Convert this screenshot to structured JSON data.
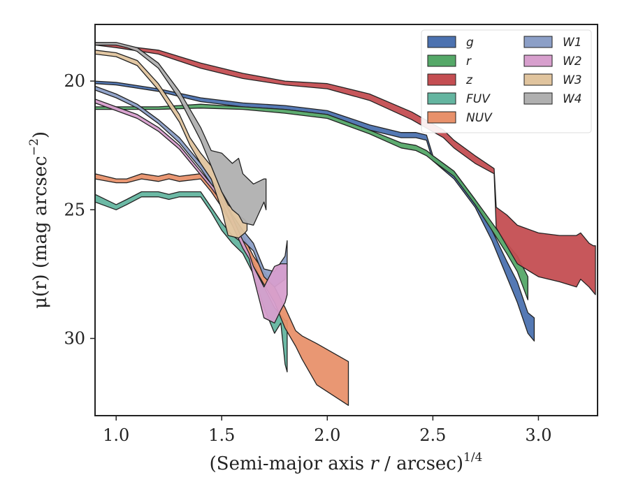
{
  "chart_data": {
    "type": "area",
    "xlabel": "(Semi-major axis r / arcsec)",
    "xlabel_var": "r",
    "xlabel_exp": "1/4",
    "ylabel": "μ(r) (mag arcsec",
    "ylabel_exp": "−2",
    "ylabel_close": ")",
    "xlim": [
      0.9,
      3.28
    ],
    "ylim": [
      33.0,
      17.8
    ],
    "y_inverted": true,
    "xticks": [
      1.0,
      1.5,
      2.0,
      2.5,
      3.0
    ],
    "xtick_labels": [
      "1.0",
      "1.5",
      "2.0",
      "2.5",
      "3.0"
    ],
    "yticks": [
      20,
      25,
      30
    ],
    "ytick_labels": [
      "20",
      "25",
      "30"
    ],
    "grid": false,
    "legend": {
      "placement": "top-right",
      "columns": 2
    },
    "series": [
      {
        "name": "g",
        "color": "#4C72B0",
        "x": [
          0.9,
          1.0,
          1.2,
          1.4,
          1.6,
          1.8,
          2.0,
          2.2,
          2.35,
          2.42,
          2.47,
          2.5,
          2.6,
          2.7,
          2.78,
          2.85,
          2.9,
          2.95,
          2.98
        ],
        "lo": [
          20.0,
          20.05,
          20.3,
          20.65,
          20.85,
          20.95,
          21.15,
          21.7,
          22.0,
          22.0,
          22.1,
          22.9,
          23.5,
          24.6,
          25.8,
          27.0,
          27.8,
          29.0,
          29.2
        ],
        "hi": [
          20.1,
          20.15,
          20.4,
          20.8,
          21.0,
          21.1,
          21.3,
          21.9,
          22.2,
          22.2,
          22.3,
          23.1,
          23.8,
          24.9,
          26.2,
          27.6,
          28.6,
          29.8,
          30.1
        ]
      },
      {
        "name": "r",
        "color": "#55A868",
        "x": [
          0.9,
          1.0,
          1.2,
          1.4,
          1.6,
          1.8,
          2.0,
          2.2,
          2.35,
          2.42,
          2.47,
          2.5,
          2.6,
          2.7,
          2.78,
          2.85,
          2.9,
          2.95
        ],
        "lo": [
          21.0,
          21.0,
          21.0,
          20.9,
          21.0,
          21.1,
          21.3,
          21.9,
          22.4,
          22.5,
          22.7,
          22.9,
          23.5,
          24.6,
          25.5,
          26.3,
          26.8,
          27.6
        ],
        "hi": [
          21.1,
          21.1,
          21.1,
          21.05,
          21.1,
          21.25,
          21.45,
          22.05,
          22.6,
          22.7,
          22.9,
          23.1,
          23.7,
          24.8,
          25.8,
          26.7,
          27.4,
          28.5
        ]
      },
      {
        "name": "z",
        "color": "#C44E52",
        "x": [
          0.9,
          1.0,
          1.2,
          1.4,
          1.6,
          1.8,
          2.0,
          2.2,
          2.4,
          2.55,
          2.6,
          2.7,
          2.79,
          2.8,
          2.85,
          2.9,
          3.0,
          3.1,
          3.18,
          3.2,
          3.24,
          3.26,
          3.27
        ],
        "lo": [
          18.5,
          18.6,
          18.8,
          19.3,
          19.7,
          20.0,
          20.1,
          20.5,
          21.2,
          21.9,
          22.3,
          22.9,
          23.4,
          24.9,
          25.2,
          25.6,
          25.9,
          26.0,
          26.0,
          25.9,
          26.3,
          26.4,
          26.4
        ],
        "hi": [
          18.6,
          18.7,
          18.95,
          19.5,
          19.9,
          20.15,
          20.3,
          20.75,
          21.5,
          22.2,
          22.6,
          23.2,
          23.6,
          25.7,
          26.4,
          27.1,
          27.6,
          27.8,
          28.0,
          27.7,
          28.0,
          28.2,
          28.3
        ]
      },
      {
        "name": "FUV",
        "color": "#64B5A0",
        "x": [
          0.9,
          1.0,
          1.05,
          1.12,
          1.2,
          1.25,
          1.3,
          1.4,
          1.45,
          1.5,
          1.55,
          1.6,
          1.65,
          1.7,
          1.75,
          1.78,
          1.8,
          1.81
        ],
        "lo": [
          24.4,
          24.8,
          24.6,
          24.3,
          24.3,
          24.4,
          24.3,
          24.3,
          24.9,
          25.5,
          26.0,
          26.3,
          27.0,
          28.0,
          28.8,
          29.1,
          29.3,
          29.3
        ],
        "hi": [
          24.7,
          25.0,
          24.8,
          24.5,
          24.5,
          24.6,
          24.5,
          24.5,
          25.1,
          25.8,
          26.3,
          26.7,
          27.5,
          28.8,
          29.8,
          29.4,
          31.0,
          31.3
        ]
      },
      {
        "name": "NUV",
        "color": "#E8916B",
        "x": [
          0.9,
          1.0,
          1.05,
          1.12,
          1.2,
          1.25,
          1.3,
          1.4,
          1.45,
          1.5,
          1.55,
          1.6,
          1.65,
          1.7,
          1.75,
          1.8,
          1.85,
          1.88,
          1.95,
          2.1
        ],
        "lo": [
          23.6,
          23.8,
          23.8,
          23.6,
          23.7,
          23.6,
          23.7,
          23.6,
          24.1,
          24.6,
          25.3,
          26.0,
          26.8,
          27.4,
          28.0,
          28.8,
          29.7,
          29.9,
          30.2,
          30.9
        ],
        "hi": [
          23.8,
          23.95,
          23.95,
          23.8,
          23.9,
          23.8,
          23.9,
          23.8,
          24.3,
          24.9,
          25.6,
          26.4,
          27.2,
          27.9,
          28.6,
          29.6,
          30.3,
          30.8,
          31.8,
          32.6
        ]
      },
      {
        "name": "W1",
        "color": "#8C9FC7",
        "x": [
          0.9,
          1.0,
          1.1,
          1.2,
          1.3,
          1.35,
          1.4,
          1.45,
          1.5,
          1.55,
          1.6,
          1.65,
          1.7,
          1.75,
          1.8,
          1.81
        ],
        "lo": [
          20.2,
          20.5,
          20.9,
          21.5,
          22.2,
          22.7,
          23.2,
          23.8,
          24.4,
          25.2,
          25.8,
          26.3,
          27.3,
          27.4,
          26.8,
          26.2
        ],
        "hi": [
          20.35,
          20.65,
          21.05,
          21.65,
          22.4,
          22.9,
          23.4,
          24.0,
          24.6,
          25.4,
          26.2,
          26.6,
          27.6,
          28.0,
          27.7,
          27.2
        ]
      },
      {
        "name": "W2",
        "color": "#D79FCD",
        "x": [
          0.9,
          1.0,
          1.1,
          1.2,
          1.3,
          1.35,
          1.4,
          1.45,
          1.5,
          1.55,
          1.6,
          1.63,
          1.65,
          1.7,
          1.75,
          1.78,
          1.8,
          1.81
        ],
        "lo": [
          20.7,
          21.0,
          21.3,
          21.8,
          22.5,
          23.0,
          23.5,
          24.0,
          24.5,
          25.3,
          26.2,
          26.7,
          27.2,
          28.0,
          27.2,
          27.1,
          27.1,
          27.1
        ],
        "hi": [
          20.85,
          21.15,
          21.45,
          21.95,
          22.65,
          23.15,
          23.65,
          24.15,
          24.7,
          25.6,
          26.5,
          26.9,
          27.6,
          29.2,
          29.4,
          28.9,
          28.6,
          28.3
        ]
      },
      {
        "name": "W3",
        "color": "#E0C49E",
        "x": [
          0.9,
          1.0,
          1.1,
          1.2,
          1.3,
          1.35,
          1.4,
          1.45,
          1.5,
          1.53,
          1.58,
          1.61,
          1.62
        ],
        "lo": [
          18.8,
          18.9,
          19.2,
          20.1,
          21.3,
          22.2,
          22.8,
          23.3,
          24.3,
          24.8,
          25.2,
          25.4,
          25.5
        ],
        "hi": [
          18.95,
          19.05,
          19.4,
          20.35,
          21.6,
          22.5,
          23.2,
          23.8,
          25.0,
          26.0,
          26.1,
          25.9,
          25.8
        ]
      },
      {
        "name": "W4",
        "color": "#B0B0B0",
        "x": [
          0.9,
          1.0,
          1.05,
          1.1,
          1.2,
          1.3,
          1.4,
          1.45,
          1.5,
          1.55,
          1.58,
          1.6,
          1.65,
          1.7,
          1.71
        ],
        "lo": [
          18.5,
          18.5,
          18.6,
          18.7,
          19.3,
          20.4,
          21.8,
          22.7,
          22.8,
          23.2,
          23.0,
          23.6,
          24.0,
          23.8,
          23.8
        ],
        "hi": [
          18.6,
          18.6,
          18.7,
          18.85,
          19.5,
          20.7,
          22.3,
          23.3,
          24.3,
          25.0,
          25.2,
          25.5,
          25.6,
          24.7,
          25.0
        ]
      }
    ]
  }
}
